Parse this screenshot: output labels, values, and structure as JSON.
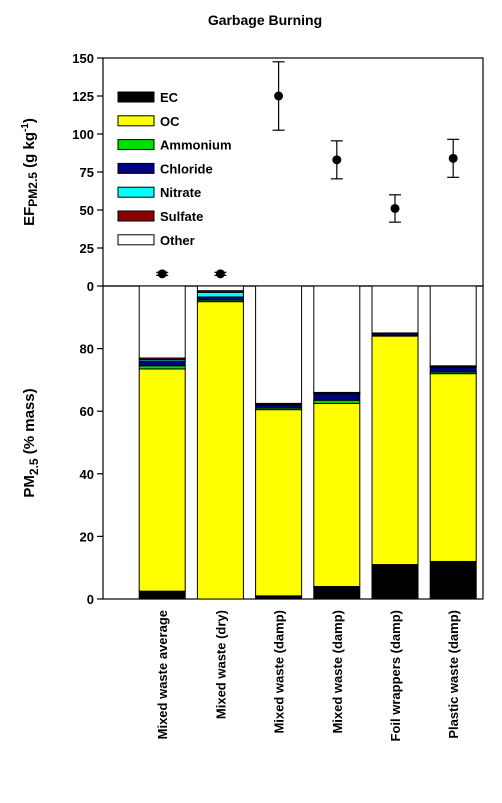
{
  "chart_data": [
    {
      "type": "errorbar",
      "title": "Garbage Burning",
      "ylabel": [
        "EF",
        "PM2.5",
        " (g kg",
        "-1",
        ")"
      ],
      "values": [
        8,
        8,
        125,
        83,
        51,
        84
      ],
      "errors": [
        1,
        1,
        22.5,
        12.5,
        9,
        12.5
      ],
      "color": "#000000",
      "ylim": [
        0,
        150
      ],
      "yticks": [
        0,
        25,
        50,
        75,
        100,
        125,
        150
      ]
    },
    {
      "type": "stacked_bar",
      "ylabel": [
        "PM",
        "2.5",
        " (% mass)"
      ],
      "categories": [
        "Mixed waste average",
        "Mixed waste (dry)",
        "Mixed waste (damp)",
        "Mixed waste (damp)",
        "Foil wrappers (damp)",
        "Plastic waste (damp)"
      ],
      "series": [
        {
          "name": "EC",
          "color": "#000000",
          "values": [
            2.5,
            0,
            1,
            4,
            11,
            12
          ]
        },
        {
          "name": "OC",
          "color": "#ffff00",
          "values": [
            71,
            95,
            59.5,
            58.5,
            73,
            60
          ]
        },
        {
          "name": "Ammonium",
          "color": "#00e000",
          "values": [
            1,
            0.5,
            0.5,
            1,
            0.2,
            0.5
          ]
        },
        {
          "name": "Chloride",
          "color": "#000080",
          "values": [
            1.5,
            1,
            1,
            2,
            0.5,
            1.5
          ]
        },
        {
          "name": "Nitrate",
          "color": "#00ffff",
          "values": [
            0.5,
            1.5,
            0.3,
            0.3,
            0.1,
            0.2
          ]
        },
        {
          "name": "Sulfate",
          "color": "#8b0000",
          "values": [
            0.5,
            0.5,
            0.2,
            0.2,
            0.2,
            0.3
          ]
        },
        {
          "name": "Other",
          "color": "#ffffff",
          "values": [
            23,
            1.5,
            37.5,
            34,
            15,
            25.5
          ]
        }
      ],
      "ylim": [
        0,
        100
      ],
      "yticks": [
        0,
        20,
        40,
        60,
        80
      ]
    }
  ]
}
